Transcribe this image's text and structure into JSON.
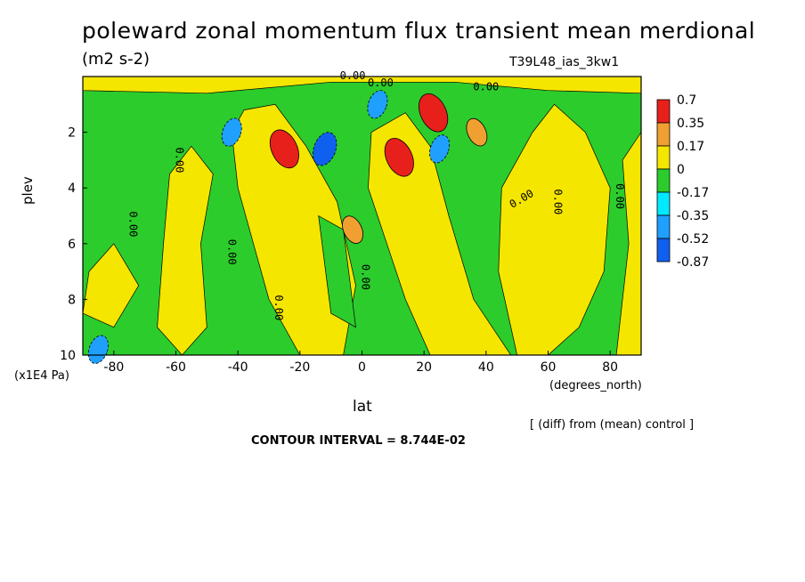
{
  "header": {
    "title": "poleward zonal momentum flux transient mean merdional",
    "units": "(m2 s-2)",
    "run_id": "T39L48_ias_3kw1"
  },
  "footer": {
    "diff_note": "[ (diff) from (mean) control ]",
    "contour_interval": "CONTOUR INTERVAL = 8.744E-02"
  },
  "chart_data": {
    "type": "heatmap",
    "title": "poleward zonal momentum flux transient mean merdional",
    "xlabel": "lat",
    "ylabel": "plev",
    "x_unit": "(degrees_north)",
    "y_unit": "(x1E4 Pa)",
    "xlim": [
      -90,
      90
    ],
    "ylim": [
      10,
      0
    ],
    "x_ticks": [
      -80,
      -60,
      -40,
      -20,
      0,
      20,
      40,
      60,
      80
    ],
    "y_ticks": [
      2,
      4,
      6,
      8,
      10
    ],
    "contour_labels": [
      "0.00"
    ],
    "colorbar": {
      "levels": [
        "0.7",
        "0.35",
        "0.17",
        "0",
        "-0.17",
        "-0.35",
        "-0.52",
        "-0.87"
      ],
      "colors": [
        "#e8201b",
        "#f0a030",
        "#f5e600",
        "#2ccc2c",
        "#00eaff",
        "#1fa0ff",
        "#1060f0"
      ]
    },
    "features": [
      {
        "lat": -25,
        "plev": 2.6,
        "value": 0.7
      },
      {
        "lat": -3,
        "plev": 5.5,
        "value": 0.35
      },
      {
        "lat": -12,
        "plev": 2.6,
        "value": -0.52
      },
      {
        "lat": 12,
        "plev": 2.9,
        "value": 0.7
      },
      {
        "lat": 5,
        "plev": 1.0,
        "value": -0.35
      },
      {
        "lat": 23,
        "plev": 1.3,
        "value": 0.7
      },
      {
        "lat": 37,
        "plev": 2.0,
        "value": 0.35
      },
      {
        "lat": 25,
        "plev": 2.6,
        "value": -0.35
      },
      {
        "lat": -42,
        "plev": 2.0,
        "value": -0.35
      },
      {
        "lat": -85,
        "plev": 9.8,
        "value": -0.35
      }
    ]
  }
}
